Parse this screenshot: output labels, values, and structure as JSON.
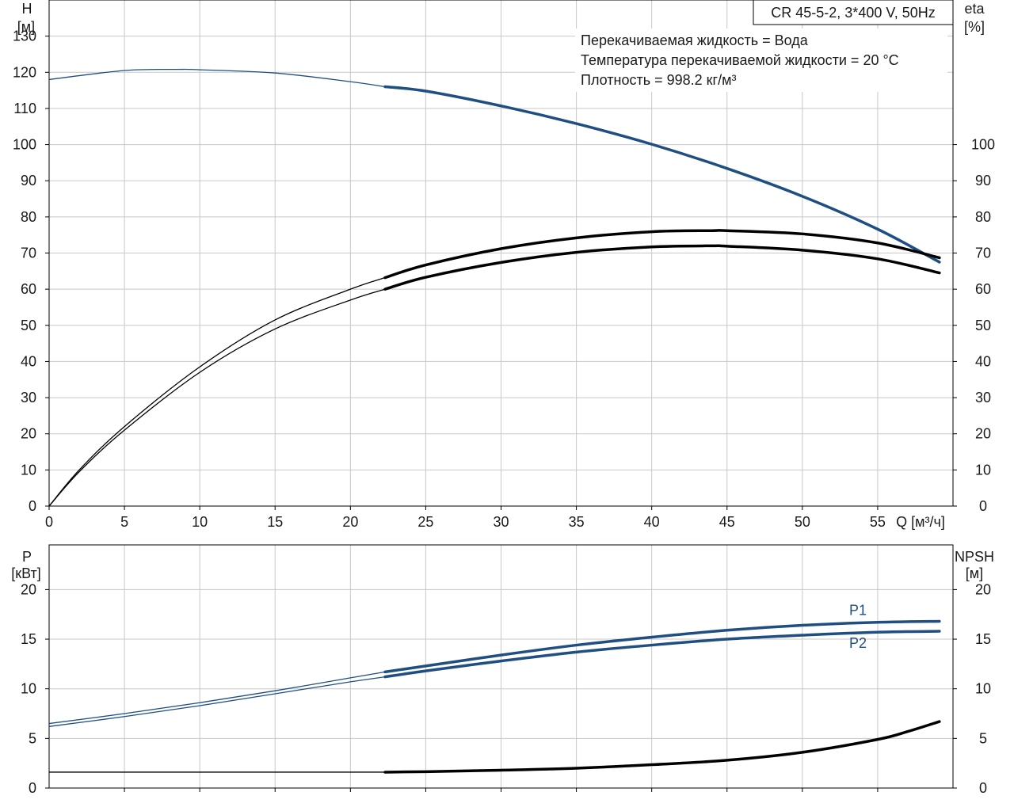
{
  "chart_data": [
    {
      "type": "line",
      "title_box": "CR 45-5-2, 3*400 V, 50Hz",
      "info_lines": [
        "Перекачиваемая жидкость = Вода",
        "Температура перекачиваемой жидкости = 20 °C",
        "Плотность = 998.2 кг/м³"
      ],
      "left_axis": {
        "label": "H",
        "unit": "[м]",
        "ticks": [
          0,
          10,
          20,
          30,
          40,
          50,
          60,
          70,
          80,
          90,
          100,
          110,
          120,
          130
        ],
        "range": [
          0,
          140
        ]
      },
      "right_axis": {
        "label": "eta",
        "unit": "[%]",
        "ticks": [
          0,
          10,
          20,
          30,
          40,
          50,
          60,
          70,
          80,
          90,
          100
        ],
        "range": [
          0,
          140
        ]
      },
      "x_axis": {
        "label": "Q [м³/ч]",
        "ticks": [
          0,
          5,
          10,
          15,
          20,
          25,
          30,
          35,
          40,
          45,
          50,
          55
        ],
        "range": [
          0,
          60
        ]
      },
      "grid": true,
      "operating_range_start": 22.3,
      "series": [
        {
          "axis": "left",
          "color": "#1f4e82",
          "x": [
            0,
            5,
            8.5,
            10,
            15,
            20,
            22.3,
            25,
            30,
            35,
            40,
            45,
            50,
            55,
            59.1
          ],
          "y": [
            118,
            120.5,
            120.8,
            120.7,
            119.8,
            117.4,
            116,
            114.8,
            110.7,
            105.8,
            100.1,
            93.4,
            85.7,
            76.6,
            67.5
          ]
        },
        {
          "axis": "right",
          "color": "#000000",
          "x": [
            0,
            2,
            5,
            10,
            15,
            20,
            22.3,
            25,
            30,
            35,
            40,
            44,
            45,
            50,
            55,
            59.1
          ],
          "y": [
            0,
            10,
            22,
            38.5,
            51.5,
            60,
            63.2,
            66.7,
            71.2,
            74.2,
            75.9,
            76.2,
            76.2,
            75.3,
            72.8,
            68.7
          ]
        },
        {
          "axis": "right",
          "color": "#000000",
          "x": [
            0,
            2,
            5,
            10,
            15,
            20,
            22.3,
            25,
            30,
            35,
            40,
            44,
            45,
            50,
            55,
            59.1
          ],
          "y": [
            0,
            9.5,
            21,
            37,
            49,
            57,
            60,
            63.3,
            67.4,
            70.2,
            71.7,
            72,
            71.9,
            70.8,
            68.4,
            64.5
          ]
        }
      ]
    },
    {
      "type": "line",
      "left_axis": {
        "label": "P",
        "unit": "[кВт]",
        "ticks": [
          0,
          5,
          10,
          15,
          20
        ],
        "range": [
          0,
          24.5
        ]
      },
      "right_axis": {
        "label": "NPSH",
        "unit": "[м]",
        "ticks": [
          0,
          5,
          10,
          15,
          20
        ],
        "range": [
          0,
          24.5
        ]
      },
      "x_axis": {
        "range": [
          0,
          60
        ]
      },
      "grid": true,
      "operating_range_start": 22.3,
      "series": [
        {
          "name": "P1",
          "axis": "left",
          "color": "#1f4e82",
          "x": [
            0,
            5,
            10,
            15,
            20,
            22.3,
            25,
            30,
            35,
            40,
            45,
            50,
            55,
            59.1
          ],
          "y": [
            6.5,
            7.5,
            8.6,
            9.8,
            11.1,
            11.7,
            12.3,
            13.4,
            14.4,
            15.2,
            15.9,
            16.4,
            16.7,
            16.8
          ]
        },
        {
          "name": "P2",
          "axis": "left",
          "color": "#1f4e82",
          "x": [
            0,
            5,
            10,
            15,
            20,
            22.3,
            25,
            30,
            35,
            40,
            45,
            50,
            55,
            59.1
          ],
          "y": [
            6.2,
            7.2,
            8.3,
            9.5,
            10.7,
            11.2,
            11.8,
            12.8,
            13.7,
            14.4,
            15.0,
            15.4,
            15.7,
            15.8
          ]
        },
        {
          "axis": "right",
          "color": "#000000",
          "x": [
            0,
            10,
            20,
            22.3,
            25,
            30,
            35,
            40,
            45,
            50,
            55,
            57,
            59.1
          ],
          "y": [
            1.6,
            1.6,
            1.6,
            1.6,
            1.65,
            1.8,
            2.0,
            2.35,
            2.8,
            3.6,
            4.9,
            5.7,
            6.7
          ]
        }
      ]
    }
  ]
}
